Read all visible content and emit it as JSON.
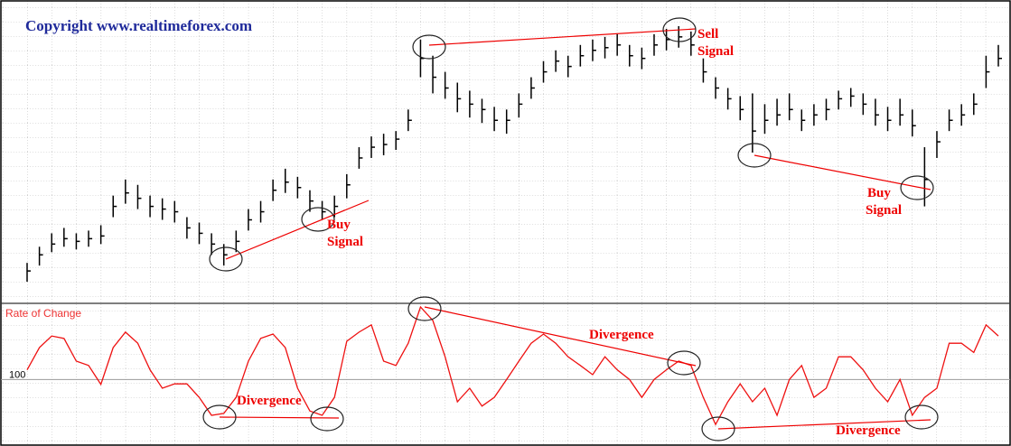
{
  "chart_data": [
    {
      "type": "ohlc",
      "title": "Copyright www.realtimeforex.com",
      "color": "#000000",
      "ylim": [
        0,
        100
      ],
      "high": [
        9,
        15,
        20,
        22,
        20,
        21,
        23,
        34,
        40,
        38,
        34,
        33,
        32,
        26,
        24,
        20,
        16,
        21,
        29,
        32,
        40,
        44,
        41,
        36,
        32,
        34,
        42,
        52,
        56,
        57,
        58,
        66,
        92,
        86,
        80,
        76,
        73,
        70,
        67,
        66,
        72,
        78,
        84,
        88,
        86,
        90,
        92,
        93,
        94,
        90,
        89,
        94,
        96,
        97,
        95,
        85,
        78,
        74,
        71,
        72,
        68,
        70,
        72,
        66,
        68,
        70,
        73,
        74,
        72,
        70,
        67,
        70,
        66,
        52,
        58,
        66,
        68,
        72,
        86,
        90
      ],
      "low": [
        2,
        8,
        13,
        15,
        14,
        15,
        16,
        26,
        31,
        29,
        26,
        25,
        24,
        18,
        16,
        12,
        8,
        13,
        21,
        24,
        32,
        35,
        33,
        28,
        25,
        26,
        33,
        44,
        48,
        49,
        51,
        58,
        78,
        72,
        70,
        65,
        63,
        61,
        58,
        57,
        63,
        70,
        76,
        80,
        78,
        82,
        84,
        85,
        86,
        82,
        81,
        86,
        88,
        89,
        86,
        76,
        70,
        66,
        62,
        50,
        57,
        60,
        62,
        58,
        60,
        62,
        66,
        67,
        64,
        60,
        58,
        60,
        56,
        30,
        48,
        58,
        60,
        64,
        74,
        82
      ],
      "close": [
        6,
        12,
        16,
        18,
        17,
        18,
        19,
        30,
        35,
        33,
        30,
        29,
        28,
        22,
        20,
        16,
        12,
        17,
        25,
        28,
        36,
        39,
        37,
        32,
        28,
        30,
        38,
        48,
        52,
        53,
        55,
        62,
        85,
        78,
        74,
        70,
        68,
        66,
        62,
        62,
        68,
        74,
        80,
        84,
        82,
        86,
        88,
        89,
        90,
        86,
        85,
        90,
        92,
        93,
        90,
        80,
        74,
        70,
        66,
        58,
        62,
        64,
        66,
        62,
        64,
        66,
        70,
        71,
        68,
        64,
        62,
        64,
        60,
        40,
        54,
        62,
        64,
        68,
        80,
        85
      ]
    },
    {
      "type": "line",
      "title": "Rate of Change",
      "color": "#ee1111",
      "ylim": [
        87,
        115
      ],
      "yticks": [
        100
      ],
      "values": [
        102,
        106.6,
        109,
        108.5,
        103.8,
        102.9,
        99,
        106.6,
        109.8,
        107.5,
        102,
        98.2,
        99.1,
        99.1,
        96.3,
        92.6,
        93,
        96.3,
        103.8,
        108.5,
        109.4,
        106.6,
        98.2,
        93.5,
        92.6,
        96.3,
        107.9,
        109.8,
        111.3,
        103.8,
        102.9,
        107.5,
        115,
        112.2,
        104.7,
        95.4,
        98.2,
        94.5,
        96.3,
        100,
        103.8,
        107.5,
        109.4,
        107.5,
        104.7,
        102.9,
        101,
        104.7,
        102,
        100,
        96.3,
        100,
        102,
        103.8,
        102.9,
        96.3,
        90.7,
        95.4,
        99.1,
        95.4,
        98.2,
        92.6,
        100,
        102.9,
        96.3,
        98.2,
        104.7,
        104.7,
        102,
        98.2,
        95.4,
        100,
        92.6,
        96.3,
        98.2,
        107.5,
        107.5,
        105.6,
        111.3,
        109
      ]
    }
  ],
  "annotations": [
    {
      "lines": [
        "Buy",
        "Signal"
      ]
    },
    {
      "lines": [
        "Sell",
        "Signal"
      ]
    },
    {
      "lines": [
        "Buy",
        "Signal"
      ]
    },
    {
      "lines": [
        "Divergence"
      ]
    },
    {
      "lines": [
        "Divergence"
      ]
    },
    {
      "lines": [
        "Divergence"
      ]
    }
  ]
}
